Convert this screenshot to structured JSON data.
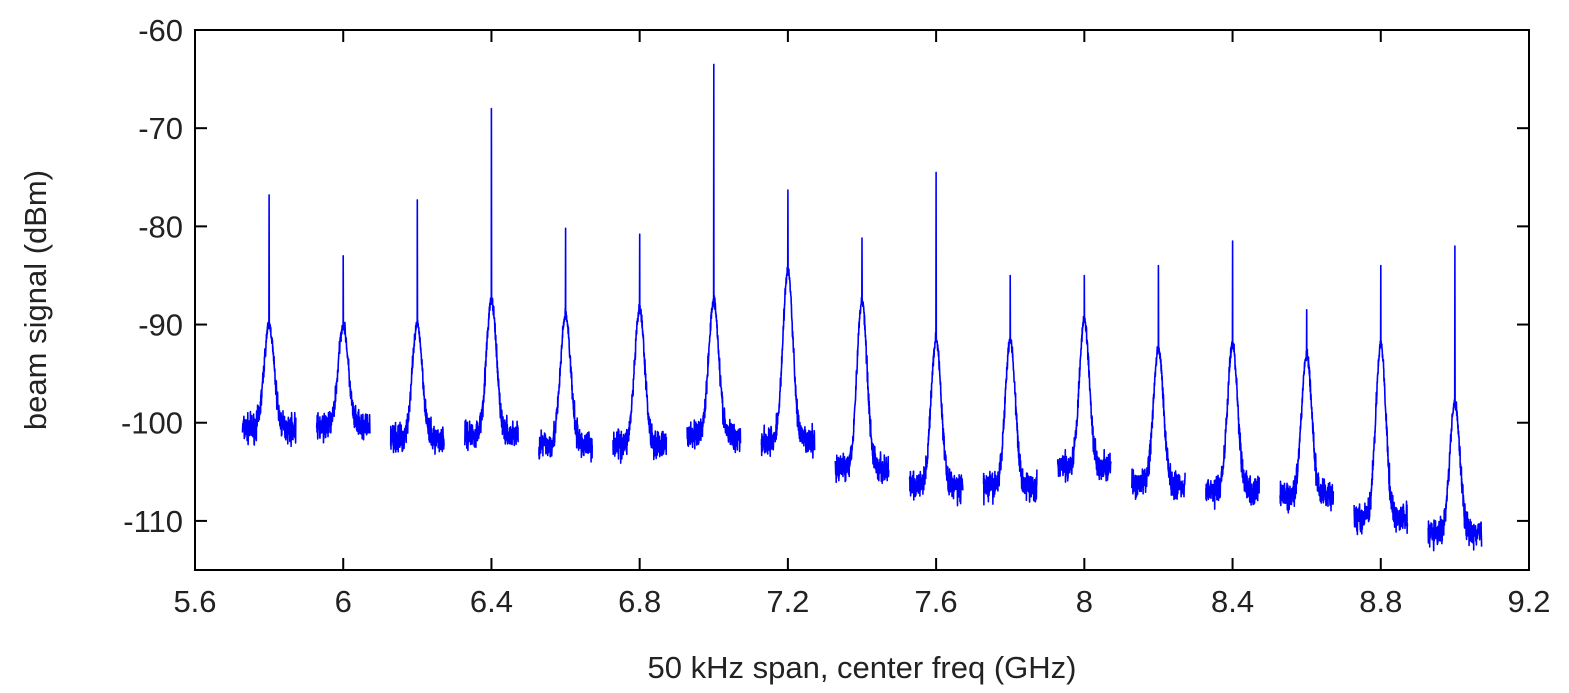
{
  "chart_data": {
    "type": "line",
    "title": "",
    "xlabel": "50 kHz span, center freq (GHz)",
    "ylabel": "beam signal (dBm)",
    "xlim": [
      5.6,
      9.2
    ],
    "ylim": [
      -115,
      -60
    ],
    "x_ticks": [
      "5.6",
      "6",
      "6.4",
      "6.8",
      "7.2",
      "7.6",
      "8",
      "8.4",
      "8.8",
      "9.2"
    ],
    "y_ticks": [
      "-60",
      "-70",
      "-80",
      "-90",
      "-100",
      "-110"
    ],
    "x_tick_values": [
      5.6,
      6.0,
      6.4,
      6.8,
      7.2,
      7.6,
      8.0,
      8.4,
      8.8,
      9.2
    ],
    "y_tick_values": [
      -60,
      -70,
      -80,
      -90,
      -100,
      -110
    ],
    "grid": false,
    "line_color": "#0000ff",
    "series": [
      {
        "segment_half_width": 0.072,
        "peaks": [
          {
            "center": 5.8,
            "baseline": -100.6,
            "hump": -90.0,
            "spike": -76.8
          },
          {
            "center": 6.0,
            "baseline": -100.4,
            "hump": -90.0,
            "spike": -83.0
          },
          {
            "center": 6.2,
            "baseline": -101.6,
            "hump": -90.0,
            "spike": -77.3
          },
          {
            "center": 6.4,
            "baseline": -101.2,
            "hump": -87.5,
            "spike": -68.0
          },
          {
            "center": 6.6,
            "baseline": -102.2,
            "hump": -89.0,
            "spike": -80.2
          },
          {
            "center": 6.8,
            "baseline": -102.2,
            "hump": -88.5,
            "spike": -80.8
          },
          {
            "center": 7.0,
            "baseline": -101.3,
            "hump": -87.5,
            "spike": -63.5
          },
          {
            "center": 7.2,
            "baseline": -101.9,
            "hump": -84.5,
            "spike": -76.3
          },
          {
            "center": 7.4,
            "baseline": -104.6,
            "hump": -87.5,
            "spike": -81.2
          },
          {
            "center": 7.6,
            "baseline": -106.5,
            "hump": -91.5,
            "spike": -74.5
          },
          {
            "center": 7.8,
            "baseline": -106.5,
            "hump": -91.5,
            "spike": -85.0
          },
          {
            "center": 8.0,
            "baseline": -104.5,
            "hump": -89.5,
            "spike": -85.0
          },
          {
            "center": 8.2,
            "baseline": -106.3,
            "hump": -92.5,
            "spike": -84.0
          },
          {
            "center": 8.4,
            "baseline": -106.9,
            "hump": -92.0,
            "spike": -81.5
          },
          {
            "center": 8.6,
            "baseline": -107.4,
            "hump": -93.0,
            "spike": -88.5
          },
          {
            "center": 8.8,
            "baseline": -109.8,
            "hump": -92.0,
            "spike": -84.0
          },
          {
            "center": 9.0,
            "baseline": -111.3,
            "hump": -98.0,
            "spike": -82.0
          }
        ]
      }
    ]
  }
}
